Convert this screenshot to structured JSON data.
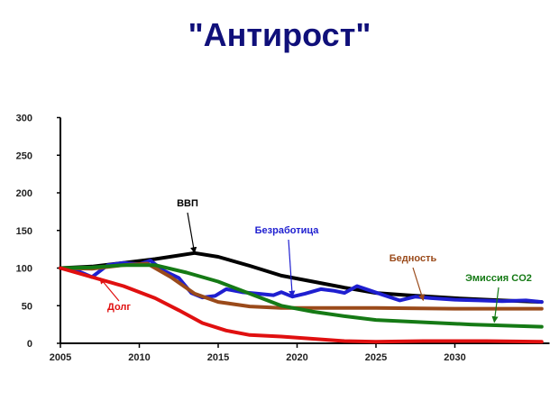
{
  "title": "\"Антирост\"",
  "chart_data": {
    "type": "line",
    "xlim": [
      2005,
      2036
    ],
    "ylim": [
      0,
      300
    ],
    "x_ticks": [
      "2005",
      "2010",
      "2015",
      "2020",
      "2025",
      "2030"
    ],
    "x_tick_values": [
      2005,
      2010,
      2015,
      2020,
      2025,
      2030
    ],
    "y_ticks": [
      "0",
      "50",
      "100",
      "150",
      "200",
      "250",
      "300"
    ],
    "y_tick_values": [
      0,
      50,
      100,
      150,
      200,
      250,
      300
    ],
    "grid": false,
    "series": [
      {
        "name": "ВВП",
        "color": "#000000",
        "x": [
          2005,
          2007,
          2009,
          2011,
          2013.5,
          2015,
          2017,
          2019,
          2021,
          2023,
          2025,
          2027,
          2030,
          2033,
          2035.5
        ],
        "y": [
          100,
          102,
          107,
          112,
          120,
          115,
          103,
          90,
          82,
          74,
          67,
          64,
          60,
          57,
          55
        ]
      },
      {
        "name": "Безработица",
        "color": "#1f1fd0",
        "x": [
          2005,
          2006,
          2007,
          2008,
          2009,
          2010,
          2010.7,
          2011.5,
          2012.5,
          2013.3,
          2014,
          2014.8,
          2015.5,
          2016.5,
          2017.5,
          2018.5,
          2019,
          2019.7,
          2020.5,
          2021.5,
          2022.3,
          2023,
          2023.8,
          2024.5,
          2025.5,
          2026.5,
          2027.5,
          2028.5,
          2030,
          2031.5,
          2033,
          2034.5,
          2035.5
        ],
        "y": [
          100,
          97,
          88,
          104,
          107,
          105,
          110,
          97,
          87,
          67,
          61,
          63,
          72,
          68,
          66,
          64,
          68,
          62,
          66,
          72,
          70,
          67,
          76,
          71,
          64,
          57,
          62,
          60,
          58,
          57,
          56,
          57,
          55
        ]
      },
      {
        "name": "Бедность",
        "color": "#9a4a1a",
        "x": [
          2005,
          2007,
          2009,
          2010.5,
          2012,
          2013.5,
          2015,
          2017,
          2019,
          2022,
          2025,
          2030,
          2035.5
        ],
        "y": [
          100,
          99,
          104,
          106,
          88,
          66,
          55,
          49,
          47,
          47,
          47,
          46,
          46
        ]
      },
      {
        "name": "Эмиссия CO2",
        "color": "#157a15",
        "x": [
          2005,
          2007,
          2009,
          2011,
          2013,
          2015,
          2017,
          2019,
          2021,
          2023,
          2025,
          2028,
          2031,
          2035.5
        ],
        "y": [
          100,
          101,
          104,
          104,
          94,
          82,
          66,
          50,
          42,
          36,
          31,
          28,
          25,
          22
        ]
      },
      {
        "name": "Долг",
        "color": "#e01010",
        "x": [
          2005,
          2007,
          2009,
          2011,
          2012.5,
          2014,
          2015.5,
          2017,
          2019,
          2021,
          2023,
          2025,
          2028,
          2032,
          2035.5
        ],
        "y": [
          100,
          88,
          76,
          60,
          44,
          27,
          17,
          11,
          9,
          6,
          3,
          2,
          3,
          3,
          2
        ]
      }
    ],
    "annotations": [
      {
        "name": "ВВП",
        "color": "#000000",
        "x": 2013.5,
        "y": 120
      },
      {
        "name": "Безработица",
        "color": "#1f1fd0",
        "x": 2019.7,
        "y": 62
      },
      {
        "name": "Бедность",
        "color": "#9a4a1a",
        "x": 2028,
        "y": 57
      },
      {
        "name": "Эмиссия CO2",
        "color": "#157a15",
        "x": 2032.5,
        "y": 28
      },
      {
        "name": "Долг",
        "color": "#e01010",
        "x": 2007.5,
        "y": 87
      }
    ]
  }
}
